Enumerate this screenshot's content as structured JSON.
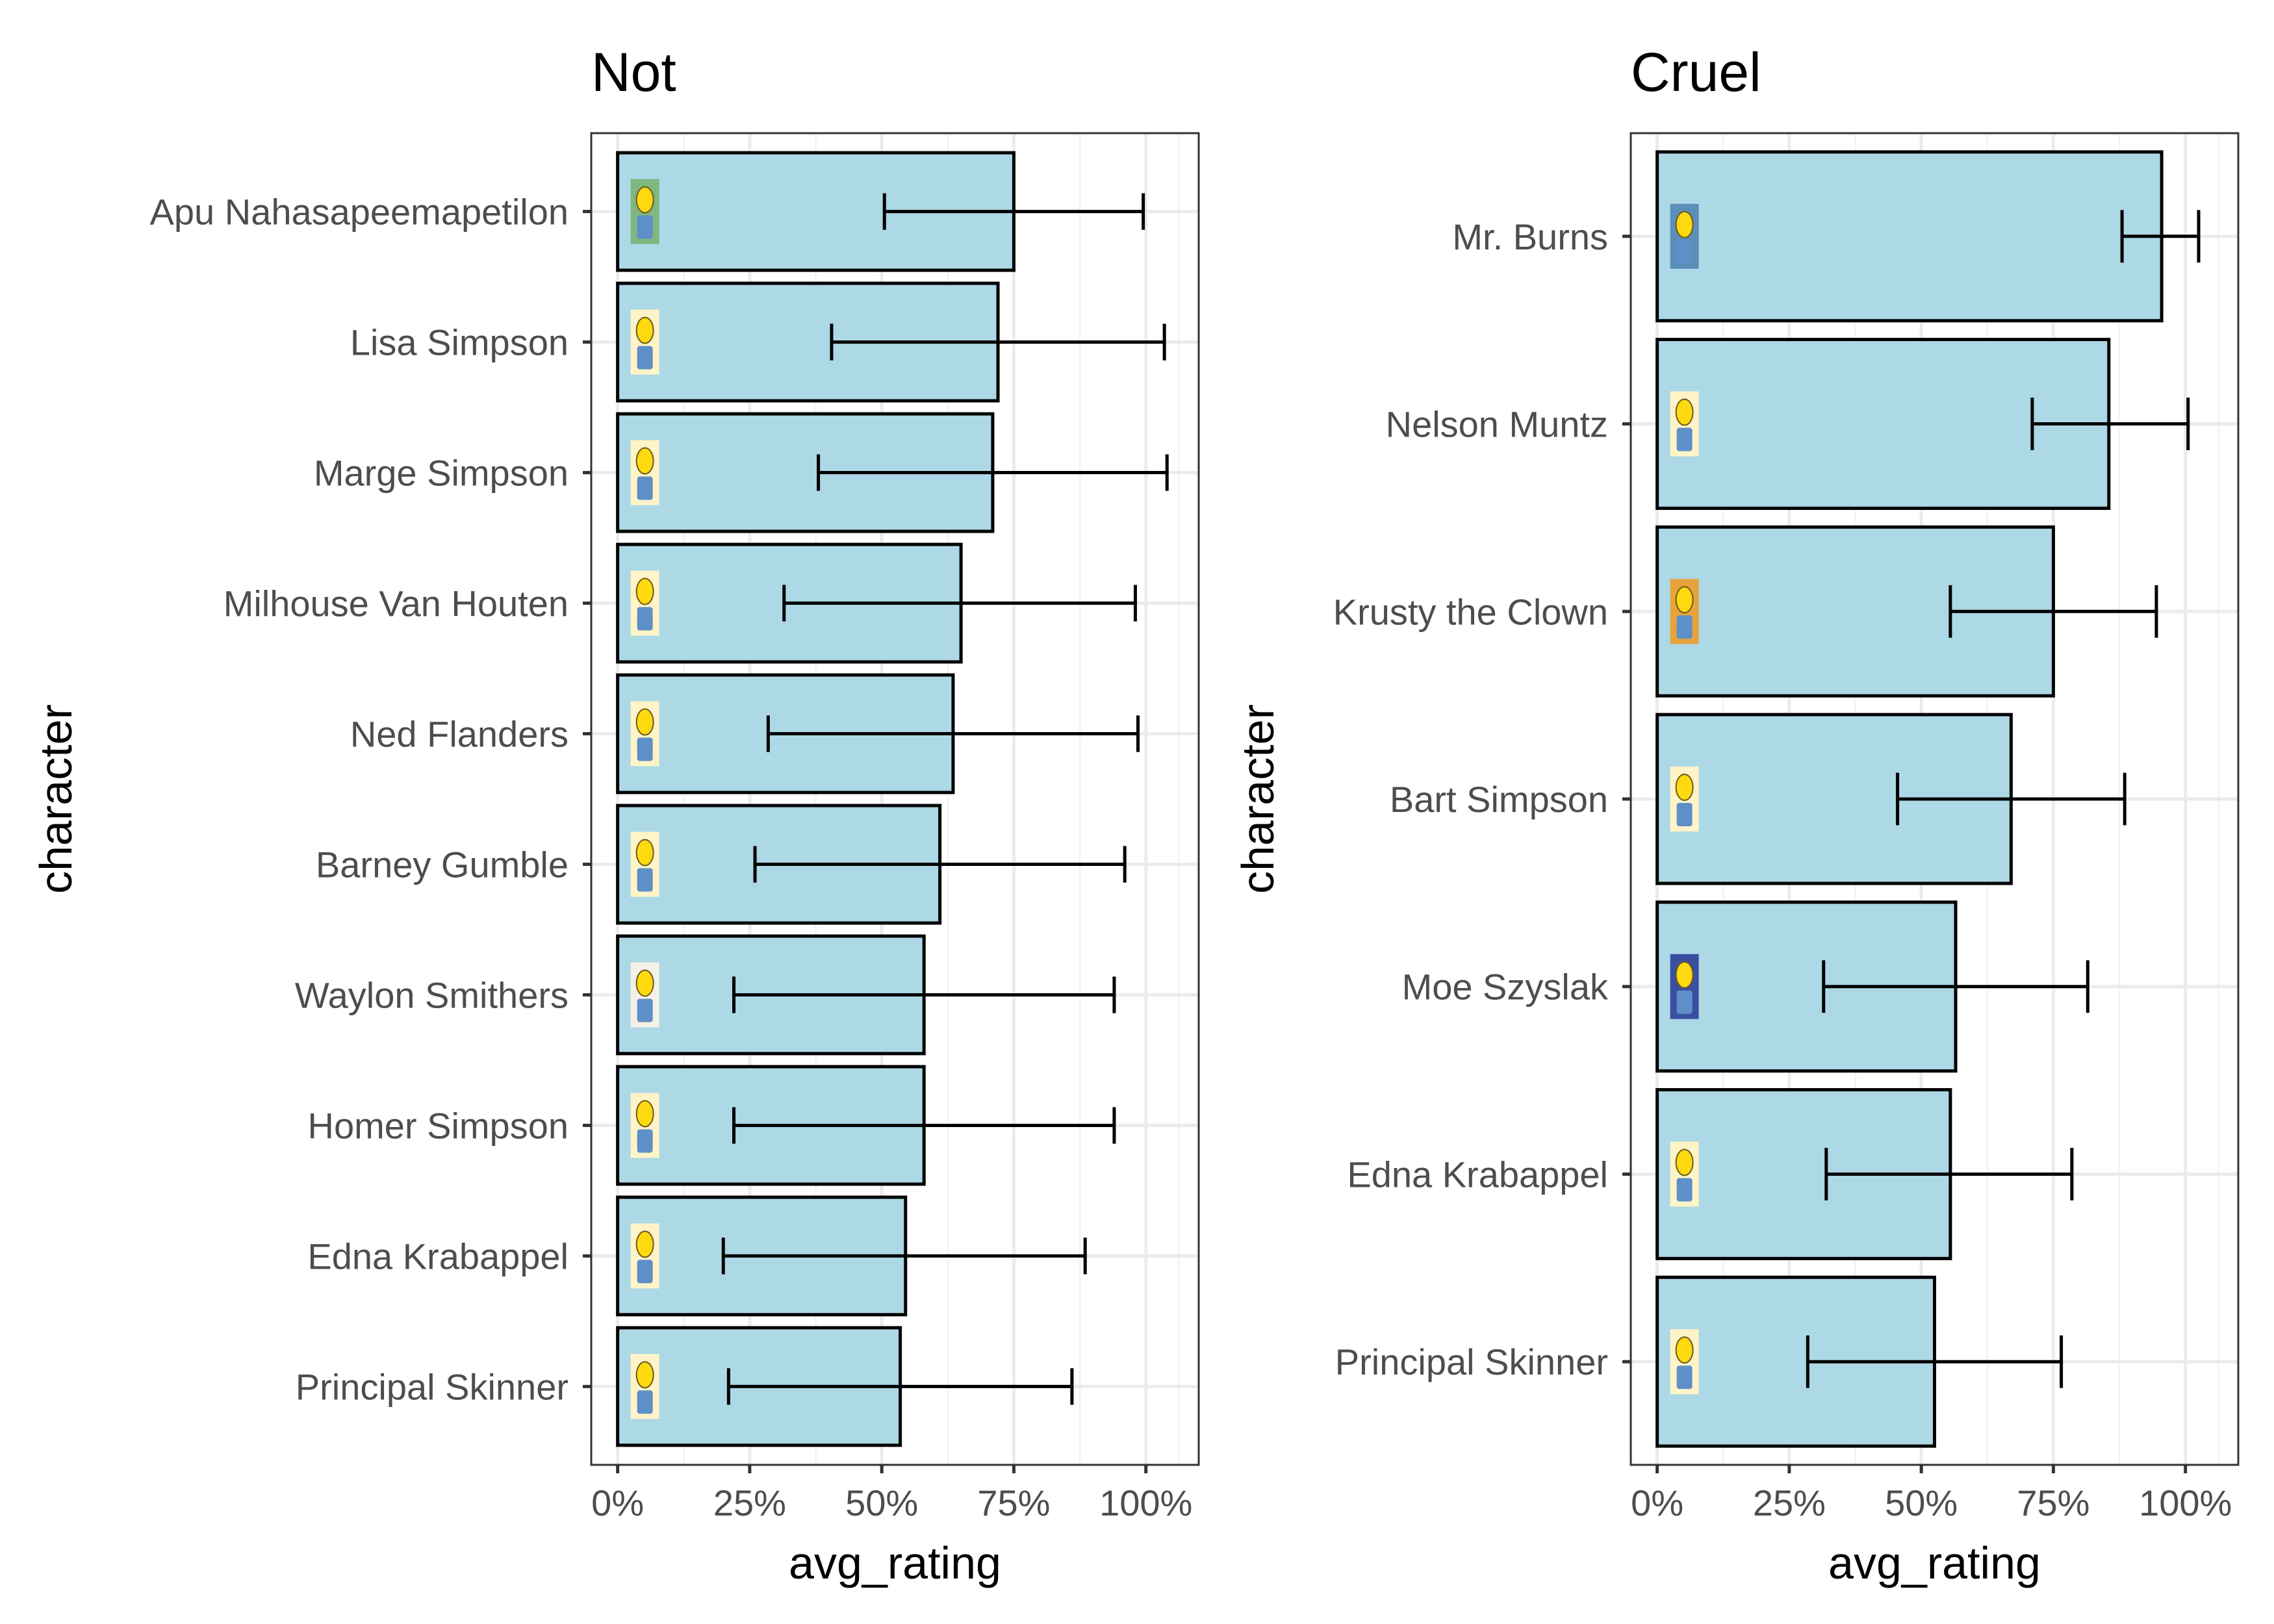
{
  "chart_data": [
    {
      "type": "bar",
      "orientation": "horizontal",
      "title": "Not",
      "xlabel": "avg_rating",
      "ylabel": "character",
      "xlim": [
        -0.05,
        1.1
      ],
      "x_ticks": [
        "0%",
        "25%",
        "50%",
        "75%",
        "100%"
      ],
      "x_tick_values": [
        0,
        0.25,
        0.5,
        0.75,
        1.0
      ],
      "grid": true,
      "bar_color": "#add8e6",
      "categories": [
        "Apu Nahasapeemapetilon",
        "Lisa Simpson",
        "Marge Simpson",
        "Milhouse Van Houten",
        "Ned Flanders",
        "Barney Gumble",
        "Waylon Smithers",
        "Homer Simpson",
        "Edna Krabappel",
        "Principal Skinner"
      ],
      "values": [
        0.75,
        0.72,
        0.71,
        0.65,
        0.635,
        0.61,
        0.58,
        0.58,
        0.545,
        0.535
      ],
      "error_low": [
        0.505,
        0.405,
        0.38,
        0.315,
        0.285,
        0.26,
        0.22,
        0.22,
        0.2,
        0.21
      ],
      "error_high": [
        0.995,
        1.035,
        1.04,
        0.98,
        0.985,
        0.96,
        0.94,
        0.94,
        0.885,
        0.86
      ],
      "icons": [
        "apu-icon",
        "lisa-simpson-icon",
        "marge-simpson-icon",
        "milhouse-icon",
        "ned-flanders-icon",
        "barney-gumble-icon",
        "waylon-smithers-icon",
        "homer-simpson-icon",
        "edna-krabappel-icon",
        "principal-skinner-icon"
      ],
      "icon_colors": [
        "#7fb77e",
        "#fff4c8",
        "#fff4c8",
        "#fff4c8",
        "#fff4c8",
        "#fff4c8",
        "#f5f0e6",
        "#fff4c8",
        "#fff4c8",
        "#fff4c8"
      ]
    },
    {
      "type": "bar",
      "orientation": "horizontal",
      "title": "Cruel",
      "xlabel": "avg_rating",
      "ylabel": "character",
      "xlim": [
        -0.05,
        1.1
      ],
      "x_ticks": [
        "0%",
        "25%",
        "50%",
        "75%",
        "100%"
      ],
      "x_tick_values": [
        0,
        0.25,
        0.5,
        0.75,
        1.0
      ],
      "grid": true,
      "bar_color": "#add8e6",
      "categories": [
        "Mr. Burns",
        "Nelson Muntz",
        "Krusty the Clown",
        "Bart Simpson",
        "Moe Szyslak",
        "Edna Krabappel",
        "Principal Skinner"
      ],
      "values": [
        0.955,
        0.855,
        0.75,
        0.67,
        0.565,
        0.555,
        0.525
      ],
      "error_low": [
        0.88,
        0.71,
        0.555,
        0.455,
        0.315,
        0.32,
        0.285
      ],
      "error_high": [
        1.025,
        1.005,
        0.945,
        0.885,
        0.815,
        0.785,
        0.765
      ],
      "icons": [
        "mr-burns-icon",
        "nelson-muntz-icon",
        "krusty-the-clown-icon",
        "bart-simpson-icon",
        "moe-szyslak-icon",
        "edna-krabappel-icon",
        "principal-skinner-icon"
      ],
      "icon_colors": [
        "#5b8fb9",
        "#fff4c8",
        "#e8a33a",
        "#fff4c8",
        "#3b4fa0",
        "#fff4c8",
        "#fff4c8"
      ]
    }
  ]
}
